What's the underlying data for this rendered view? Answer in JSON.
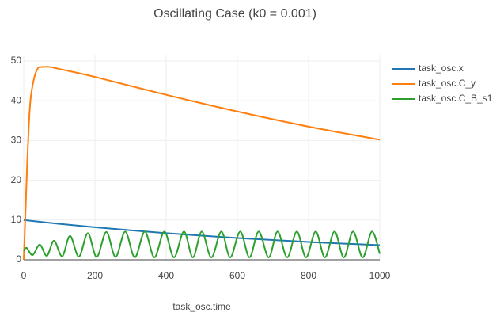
{
  "chart_data": {
    "type": "line",
    "title": "Oscillating Case (k0 = 0.001)",
    "x_label": "task_osc.time",
    "xlim": [
      0,
      1000
    ],
    "xticks": [
      0,
      200,
      400,
      600,
      800,
      1000
    ],
    "ylim": [
      0,
      51.4
    ],
    "yticks": [
      0,
      10,
      20,
      30,
      40,
      50
    ],
    "grid": true,
    "legend": "right",
    "series": [
      {
        "name": "task_osc.x",
        "color": "#1f77b4",
        "x": [
          0,
          100,
          200,
          300,
          400,
          500,
          600,
          700,
          800,
          900,
          1000
        ],
        "values": [
          10,
          9.05,
          8.19,
          7.41,
          6.7,
          6.07,
          5.49,
          4.97,
          4.49,
          4.07,
          3.68
        ]
      },
      {
        "name": "task_osc.C_y",
        "color": "#ff7f0e",
        "x": [
          0,
          5,
          10,
          15,
          20,
          30,
          40,
          50,
          75,
          100,
          200,
          400,
          600,
          800,
          1000
        ],
        "values": [
          0,
          12,
          25,
          35,
          41,
          46,
          48.2,
          48.5,
          48.5,
          48,
          46,
          41.5,
          37.3,
          33.5,
          30.2
        ]
      },
      {
        "name": "task_osc.C_B_s1",
        "color": "#2ca02c",
        "x": [
          0,
          8,
          25,
          45,
          65,
          85,
          108,
          130,
          155,
          180,
          205,
          232,
          258,
          285,
          312,
          340,
          367,
          395,
          422,
          450,
          475,
          500,
          527,
          555,
          580,
          608,
          634,
          660,
          688,
          713,
          740,
          767,
          793,
          820,
          846,
          873,
          899,
          925,
          952,
          978,
          1000
        ],
        "values": [
          2.2,
          3,
          1.2,
          3.8,
          1,
          4.8,
          0.9,
          6,
          0.8,
          6.7,
          0.7,
          7,
          0.7,
          7.1,
          0.6,
          7.1,
          0.6,
          7.1,
          0.6,
          7.1,
          0.6,
          7.1,
          0.6,
          7.1,
          0.6,
          7.1,
          0.6,
          7.1,
          0.6,
          7.1,
          0.6,
          7.1,
          0.6,
          7.1,
          0.6,
          7.1,
          0.6,
          7.1,
          0.6,
          7.1,
          1.5
        ]
      }
    ]
  }
}
